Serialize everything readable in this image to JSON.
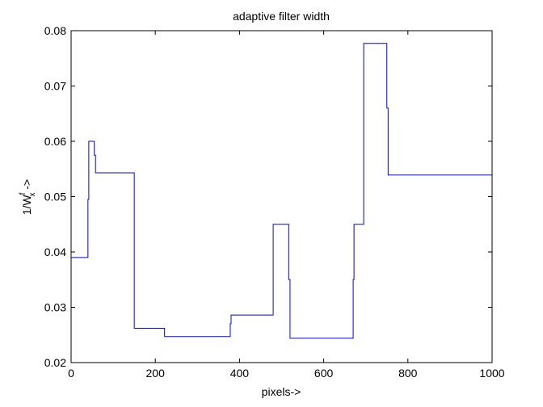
{
  "chart_data": {
    "type": "line",
    "title": "adaptive filter width",
    "xlabel": "pixels->",
    "ylabel": {
      "base": "1/W",
      "superscript": "f",
      "subscript": "x",
      "suffix": " ->"
    },
    "xlim": [
      0,
      1000
    ],
    "ylim": [
      0.02,
      0.08
    ],
    "xticks": [
      0,
      200,
      400,
      600,
      800,
      1000
    ],
    "yticks": [
      0.02,
      0.03,
      0.04,
      0.05,
      0.06,
      0.07,
      0.08
    ],
    "xtick_labels": [
      "0",
      "200",
      "400",
      "600",
      "800",
      "1000"
    ],
    "ytick_labels": [
      "0.02",
      "0.03",
      "0.04",
      "0.05",
      "0.06",
      "0.07",
      "0.08"
    ],
    "grid": false,
    "legend": "none",
    "series": [
      {
        "color": "#0000ff",
        "step": true,
        "x": [
          0,
          40,
          40,
          42,
          42,
          44,
          44,
          55,
          55,
          58,
          58,
          150,
          150,
          222,
          222,
          378,
          378,
          380,
          380,
          480,
          480,
          517,
          517,
          520,
          520,
          670,
          670,
          672,
          672,
          695,
          695,
          750,
          750,
          753,
          753,
          1000
        ],
        "y": [
          0.039,
          0.039,
          0.0495,
          0.0495,
          0.06,
          0.06,
          0.06,
          0.06,
          0.0575,
          0.0575,
          0.0543,
          0.0543,
          0.0262,
          0.0262,
          0.0247,
          0.0247,
          0.027,
          0.027,
          0.0286,
          0.0286,
          0.045,
          0.045,
          0.035,
          0.035,
          0.0244,
          0.0244,
          0.035,
          0.035,
          0.045,
          0.045,
          0.0777,
          0.0777,
          0.066,
          0.066,
          0.0539,
          0.0539
        ]
      }
    ]
  }
}
